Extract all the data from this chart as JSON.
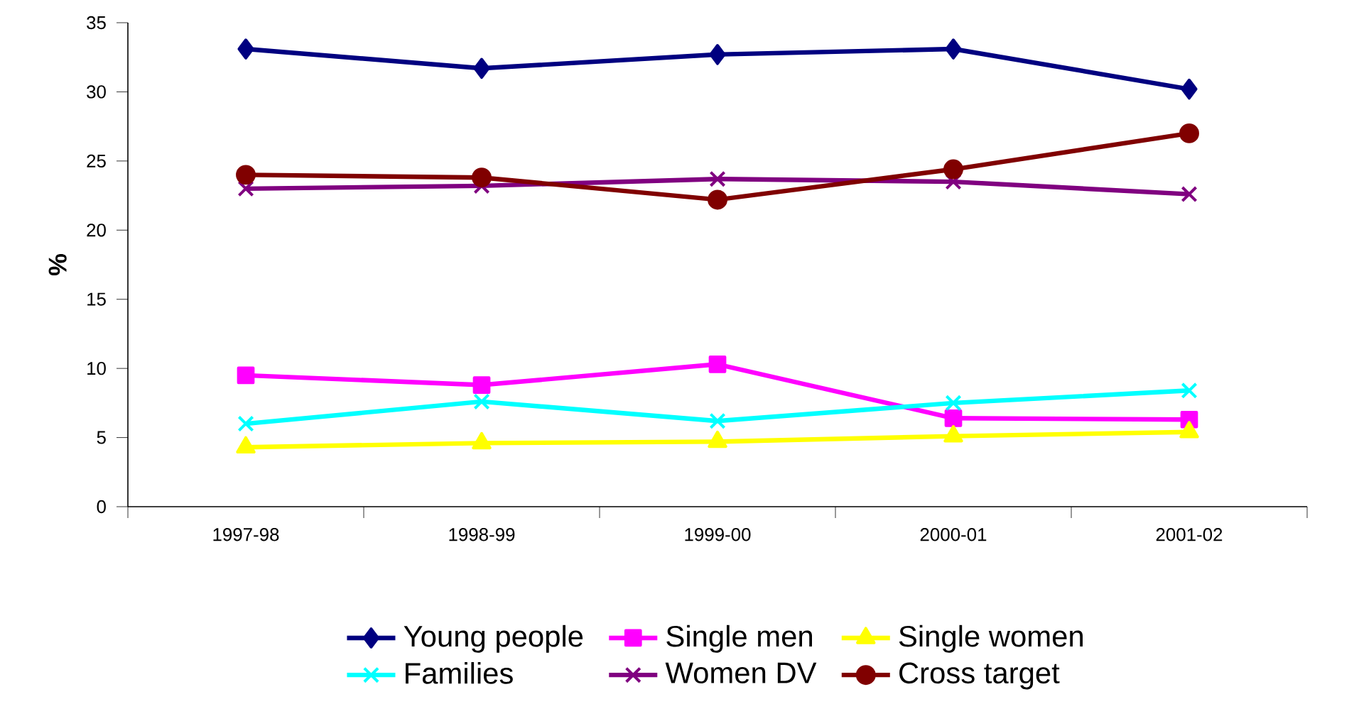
{
  "chart_data": {
    "type": "line",
    "ylabel": "%",
    "categories": [
      "1997-98",
      "1998-99",
      "1999-00",
      "2000-01",
      "2001-02"
    ],
    "series": [
      {
        "name": "Young people",
        "color": "#000080",
        "marker": "diamond",
        "values": [
          33.1,
          31.7,
          32.7,
          33.1,
          30.2
        ]
      },
      {
        "name": "Single men",
        "color": "#ff00ff",
        "marker": "square",
        "values": [
          9.5,
          8.8,
          10.3,
          6.4,
          6.3
        ]
      },
      {
        "name": "Single women",
        "color": "#ffff00",
        "marker": "triangle",
        "values": [
          4.3,
          4.6,
          4.7,
          5.1,
          5.4
        ]
      },
      {
        "name": "Families",
        "color": "#00ffff",
        "marker": "cross",
        "values": [
          6.0,
          7.6,
          6.2,
          7.5,
          8.4
        ]
      },
      {
        "name": "Women DV",
        "color": "#800080",
        "marker": "cross",
        "values": [
          23.0,
          23.2,
          23.7,
          23.5,
          22.6
        ]
      },
      {
        "name": "Cross target",
        "color": "#800000",
        "marker": "circle",
        "values": [
          24.0,
          23.8,
          22.2,
          24.4,
          27.0
        ]
      }
    ],
    "ylim": [
      0,
      35
    ],
    "yticks": [
      0,
      5,
      10,
      15,
      20,
      25,
      30,
      35
    ],
    "grid": false,
    "legend": "bottom",
    "line_style": "solid"
  }
}
